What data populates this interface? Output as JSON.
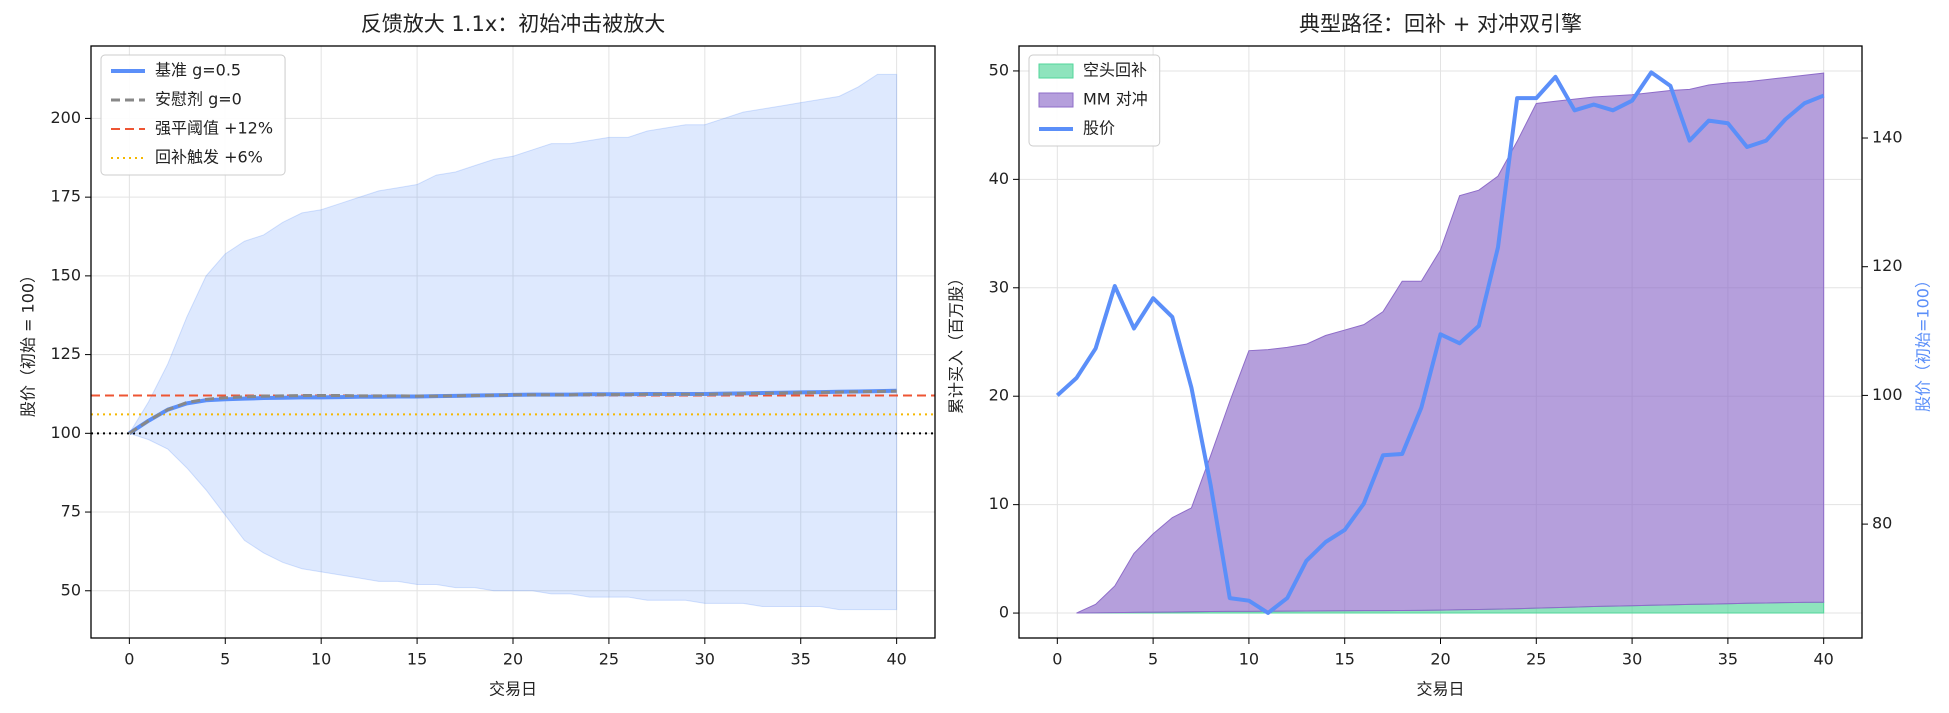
{
  "chart_data": [
    {
      "type": "line",
      "title": "反馈放大 1.1x：初始冲击被放大",
      "xlabel": "交易日",
      "ylabel": "股价（初始 = 100）",
      "x": [
        0,
        1,
        2,
        3,
        4,
        5,
        6,
        7,
        8,
        9,
        10,
        11,
        12,
        13,
        14,
        15,
        16,
        17,
        18,
        19,
        20,
        21,
        22,
        23,
        24,
        25,
        26,
        27,
        28,
        29,
        30,
        31,
        32,
        33,
        34,
        35,
        36,
        37,
        38,
        39,
        40
      ],
      "xlim": [
        -2,
        42
      ],
      "xticks": [
        0,
        5,
        10,
        15,
        20,
        25,
        30,
        35,
        40
      ],
      "ylim": [
        35,
        223
      ],
      "yticks": [
        50,
        75,
        100,
        125,
        150,
        175,
        200
      ],
      "grid": true,
      "band": {
        "color": "#5b8ff9",
        "upper": [
          100,
          110,
          122,
          137,
          150,
          157,
          161,
          163,
          167,
          170,
          171,
          173,
          175,
          177,
          178,
          179,
          182,
          183,
          185,
          187,
          188,
          190,
          192,
          192,
          193,
          194,
          194,
          196,
          197,
          198,
          198,
          200,
          202,
          203,
          204,
          205,
          206,
          207,
          210,
          214,
          214
        ],
        "lower": [
          100,
          98,
          95,
          89,
          82,
          74,
          66,
          62,
          59,
          57,
          56,
          55,
          54,
          53,
          53,
          52,
          52,
          51,
          51,
          50,
          50,
          50,
          49,
          49,
          48,
          48,
          48,
          47,
          47,
          47,
          46,
          46,
          46,
          45,
          45,
          45,
          45,
          44,
          44,
          44,
          44
        ]
      },
      "series": [
        {
          "name": "基准 g=0.5",
          "color": "#5b8ff9",
          "kind": "line",
          "style": "solid",
          "linewidth": 4,
          "values": [
            100,
            104,
            107.5,
            109.5,
            110.5,
            110.8,
            111,
            111.2,
            111.3,
            111.4,
            111.4,
            111.5,
            111.6,
            111.6,
            111.7,
            111.7,
            111.8,
            111.9,
            112,
            112.1,
            112.2,
            112.3,
            112.3,
            112.3,
            112.4,
            112.4,
            112.4,
            112.5,
            112.5,
            112.5,
            112.5,
            112.6,
            112.7,
            112.8,
            112.9,
            113,
            113.1,
            113.2,
            113.3,
            113.4,
            113.5
          ]
        },
        {
          "name": "安慰剂 g=0",
          "color": "#888888",
          "kind": "line",
          "style": "dashed",
          "linewidth": 3,
          "values": [
            100,
            104,
            107.5,
            109.8,
            110.8,
            111.3,
            111.6,
            111.8,
            111.9,
            112,
            112,
            112,
            111.9,
            111.9,
            111.9,
            111.8,
            111.8,
            111.9,
            112,
            112.1,
            112.2,
            112.2,
            112.2,
            112.2,
            112.3,
            112.3,
            112.3,
            112.4,
            112.4,
            112.4,
            112.4,
            112.5,
            112.6,
            112.7,
            112.8,
            112.9,
            113,
            113.1,
            113.2,
            113.3,
            113.4
          ]
        }
      ],
      "hlines": [
        {
          "value": 112,
          "name": "强平阈值 +12%",
          "color": "#ee5533",
          "style": "dashed"
        },
        {
          "value": 106,
          "name": "回补触发 +6%",
          "color": "#f5b800",
          "style": "dotted"
        },
        {
          "value": 100,
          "color": "#000000",
          "style": "dotted"
        }
      ]
    },
    {
      "type": "area",
      "title": "典型路径：回补 + 对冲双引擎",
      "xlabel": "交易日",
      "ylabel": "累计买入（百万股）",
      "y2label": "股价（初始=100）",
      "y2label_color": "#5b8ff9",
      "xlim": [
        -2,
        42
      ],
      "xticks": [
        0,
        5,
        10,
        15,
        20,
        25,
        30,
        35,
        40
      ],
      "ylim": [
        -2.3,
        52.3
      ],
      "yticks": [
        0,
        10,
        20,
        30,
        40,
        50
      ],
      "y2lim": [
        62.3,
        154.3
      ],
      "y2ticks": [
        80,
        100,
        120,
        140
      ],
      "grid": true,
      "series": [
        {
          "name": "空头回补",
          "color": "#52d69a",
          "kind": "area",
          "x": [
            1,
            2,
            3,
            4,
            5,
            6,
            7,
            8,
            9,
            10,
            11,
            12,
            13,
            14,
            15,
            16,
            17,
            18,
            19,
            20,
            21,
            22,
            23,
            24,
            25,
            26,
            27,
            28,
            29,
            30,
            31,
            32,
            33,
            34,
            35,
            36,
            37,
            38,
            39,
            40
          ],
          "values": [
            0,
            0.02,
            0.04,
            0.06,
            0.08,
            0.1,
            0.12,
            0.14,
            0.15,
            0.16,
            0.17,
            0.18,
            0.19,
            0.2,
            0.21,
            0.22,
            0.23,
            0.24,
            0.25,
            0.27,
            0.3,
            0.33,
            0.36,
            0.4,
            0.45,
            0.5,
            0.55,
            0.6,
            0.64,
            0.68,
            0.72,
            0.76,
            0.8,
            0.83,
            0.86,
            0.9,
            0.93,
            0.96,
            0.98,
            1.0
          ]
        },
        {
          "name": "MM 对冲",
          "color": "#8e6cc9",
          "kind": "area",
          "x": [
            1,
            2,
            3,
            4,
            5,
            6,
            7,
            8,
            9,
            10,
            11,
            12,
            13,
            14,
            15,
            16,
            17,
            18,
            19,
            20,
            21,
            22,
            23,
            24,
            25,
            26,
            27,
            28,
            29,
            30,
            31,
            32,
            33,
            34,
            35,
            36,
            37,
            38,
            39,
            40
          ],
          "values": [
            0,
            0.78,
            2.46,
            5.44,
            7.22,
            8.7,
            9.58,
            14.36,
            19.35,
            24.04,
            24.13,
            24.32,
            24.61,
            25.4,
            25.89,
            26.38,
            27.57,
            30.36,
            30.35,
            33.23,
            38.2,
            38.67,
            39.94,
            43.1,
            46.55,
            46.7,
            46.85,
            47,
            47.06,
            47.12,
            47.28,
            47.44,
            47.5,
            47.87,
            48.04,
            48.1,
            48.27,
            48.44,
            48.62,
            48.8
          ]
        },
        {
          "name": "股价",
          "color": "#5b8ff9",
          "kind": "line",
          "style": "solid",
          "linewidth": 4,
          "axis": "y2",
          "x": [
            0,
            1,
            2,
            3,
            4,
            5,
            6,
            7,
            8,
            9,
            10,
            11,
            12,
            13,
            14,
            15,
            16,
            17,
            18,
            19,
            20,
            21,
            22,
            23,
            24,
            25,
            26,
            27,
            28,
            29,
            30,
            31,
            32,
            33,
            34,
            35,
            36,
            37,
            38,
            39,
            40
          ],
          "values": [
            100,
            102.7,
            107.3,
            117,
            110.4,
            115.1,
            112.2,
            101.2,
            86.1,
            68.5,
            68.1,
            66.2,
            68.5,
            74.3,
            77.2,
            79.1,
            83.2,
            90.7,
            90.9,
            98.1,
            109.5,
            108.1,
            110.8,
            123,
            146.2,
            146.2,
            149.5,
            144.3,
            145.2,
            144.3,
            145.8,
            150.2,
            148.1,
            139.6,
            142.7,
            142.3,
            138.6,
            139.6,
            142.9,
            145.4,
            146.6
          ]
        }
      ]
    }
  ]
}
